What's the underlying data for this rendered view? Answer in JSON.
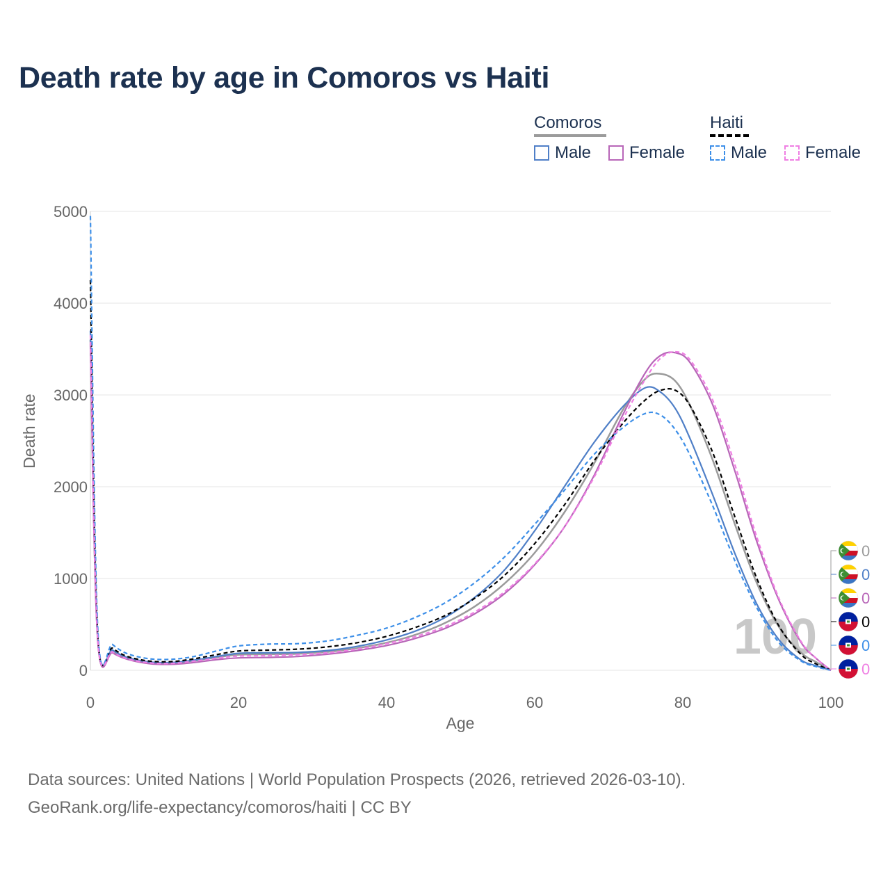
{
  "title": "Death rate by age in Comoros vs Haiti",
  "legend": {
    "groups": [
      {
        "name": "Comoros",
        "line_color": "#9b9b9b",
        "line_style": "solid",
        "items": [
          {
            "label": "Male",
            "color": "#4f7fc7",
            "style": "solid"
          },
          {
            "label": "Female",
            "color": "#b866b8",
            "style": "solid"
          }
        ]
      },
      {
        "name": "Haiti",
        "line_color": "#000000",
        "line_style": "dashed",
        "items": [
          {
            "label": "Male",
            "color": "#3d8fe8",
            "style": "dashed"
          },
          {
            "label": "Female",
            "color": "#ef7fe3",
            "style": "dashed"
          }
        ]
      }
    ]
  },
  "chart_data": {
    "type": "line",
    "title": "Death rate by age in Comoros vs Haiti",
    "xlabel": "Age",
    "ylabel": "Death rate",
    "xlim": [
      0,
      100
    ],
    "ylim": [
      0,
      5000
    ],
    "x_ticks": [
      0,
      20,
      40,
      60,
      80,
      100
    ],
    "y_ticks": [
      0,
      1000,
      2000,
      3000,
      4000,
      5000
    ],
    "grid": true,
    "year_watermark": "100",
    "series": [
      {
        "name": "Comoros Total",
        "color": "#9b9b9b",
        "dash": "",
        "width": 2.5,
        "points": [
          [
            0,
            3600
          ],
          [
            1,
            330
          ],
          [
            3,
            210
          ],
          [
            5,
            130
          ],
          [
            8,
            85
          ],
          [
            11,
            80
          ],
          [
            14,
            105
          ],
          [
            17,
            140
          ],
          [
            20,
            170
          ],
          [
            24,
            175
          ],
          [
            28,
            180
          ],
          [
            32,
            200
          ],
          [
            36,
            240
          ],
          [
            40,
            300
          ],
          [
            44,
            390
          ],
          [
            48,
            520
          ],
          [
            52,
            700
          ],
          [
            56,
            950
          ],
          [
            60,
            1280
          ],
          [
            64,
            1720
          ],
          [
            68,
            2250
          ],
          [
            72,
            2850
          ],
          [
            75,
            3180
          ],
          [
            77,
            3230
          ],
          [
            79,
            3150
          ],
          [
            81,
            2880
          ],
          [
            84,
            2300
          ],
          [
            87,
            1600
          ],
          [
            90,
            950
          ],
          [
            93,
            470
          ],
          [
            96,
            190
          ],
          [
            98,
            90
          ],
          [
            100,
            0
          ]
        ]
      },
      {
        "name": "Comoros Male",
        "color": "#4f7fc7",
        "dash": "",
        "width": 2.2,
        "points": [
          [
            0,
            3700
          ],
          [
            1,
            340
          ],
          [
            3,
            220
          ],
          [
            5,
            140
          ],
          [
            8,
            90
          ],
          [
            11,
            85
          ],
          [
            14,
            110
          ],
          [
            17,
            150
          ],
          [
            20,
            185
          ],
          [
            24,
            190
          ],
          [
            28,
            195
          ],
          [
            32,
            215
          ],
          [
            36,
            260
          ],
          [
            40,
            330
          ],
          [
            44,
            430
          ],
          [
            48,
            580
          ],
          [
            52,
            800
          ],
          [
            56,
            1100
          ],
          [
            60,
            1520
          ],
          [
            64,
            2000
          ],
          [
            68,
            2480
          ],
          [
            72,
            2880
          ],
          [
            75,
            3080
          ],
          [
            77,
            3030
          ],
          [
            79,
            2850
          ],
          [
            81,
            2520
          ],
          [
            84,
            1920
          ],
          [
            87,
            1280
          ],
          [
            90,
            720
          ],
          [
            93,
            330
          ],
          [
            96,
            110
          ],
          [
            98,
            50
          ],
          [
            100,
            0
          ]
        ]
      },
      {
        "name": "Comoros Female",
        "color": "#b866b8",
        "dash": "",
        "width": 2.2,
        "points": [
          [
            0,
            3550
          ],
          [
            1,
            310
          ],
          [
            3,
            190
          ],
          [
            5,
            120
          ],
          [
            8,
            72
          ],
          [
            11,
            65
          ],
          [
            14,
            85
          ],
          [
            17,
            115
          ],
          [
            20,
            135
          ],
          [
            24,
            140
          ],
          [
            28,
            150
          ],
          [
            32,
            175
          ],
          [
            36,
            215
          ],
          [
            40,
            270
          ],
          [
            44,
            350
          ],
          [
            48,
            460
          ],
          [
            52,
            620
          ],
          [
            56,
            840
          ],
          [
            60,
            1150
          ],
          [
            64,
            1560
          ],
          [
            68,
            2120
          ],
          [
            72,
            2800
          ],
          [
            75,
            3250
          ],
          [
            77,
            3430
          ],
          [
            79,
            3460
          ],
          [
            81,
            3350
          ],
          [
            84,
            2900
          ],
          [
            87,
            2180
          ],
          [
            90,
            1400
          ],
          [
            93,
            760
          ],
          [
            96,
            300
          ],
          [
            98,
            130
          ],
          [
            100,
            0
          ]
        ]
      },
      {
        "name": "Haiti Total",
        "color": "#000000",
        "dash": "6,4",
        "width": 2.2,
        "points": [
          [
            0,
            4250
          ],
          [
            1,
            380
          ],
          [
            3,
            240
          ],
          [
            5,
            150
          ],
          [
            8,
            100
          ],
          [
            11,
            95
          ],
          [
            14,
            125
          ],
          [
            17,
            170
          ],
          [
            20,
            210
          ],
          [
            24,
            220
          ],
          [
            28,
            230
          ],
          [
            32,
            255
          ],
          [
            36,
            300
          ],
          [
            40,
            370
          ],
          [
            44,
            470
          ],
          [
            48,
            600
          ],
          [
            52,
            790
          ],
          [
            56,
            1040
          ],
          [
            60,
            1380
          ],
          [
            64,
            1800
          ],
          [
            68,
            2280
          ],
          [
            72,
            2700
          ],
          [
            75,
            2950
          ],
          [
            77,
            3050
          ],
          [
            79,
            3050
          ],
          [
            81,
            2880
          ],
          [
            84,
            2380
          ],
          [
            87,
            1680
          ],
          [
            90,
            1000
          ],
          [
            93,
            480
          ],
          [
            96,
            170
          ],
          [
            98,
            70
          ],
          [
            100,
            0
          ]
        ]
      },
      {
        "name": "Haiti Male",
        "color": "#3d8fe8",
        "dash": "6,4",
        "width": 2.2,
        "points": [
          [
            0,
            4950
          ],
          [
            1,
            440
          ],
          [
            3,
            280
          ],
          [
            5,
            180
          ],
          [
            8,
            125
          ],
          [
            11,
            120
          ],
          [
            14,
            150
          ],
          [
            17,
            210
          ],
          [
            20,
            265
          ],
          [
            24,
            285
          ],
          [
            28,
            290
          ],
          [
            32,
            320
          ],
          [
            36,
            380
          ],
          [
            40,
            460
          ],
          [
            44,
            580
          ],
          [
            48,
            740
          ],
          [
            52,
            960
          ],
          [
            56,
            1240
          ],
          [
            60,
            1590
          ],
          [
            64,
            1960
          ],
          [
            68,
            2350
          ],
          [
            72,
            2650
          ],
          [
            75,
            2800
          ],
          [
            77,
            2780
          ],
          [
            79,
            2620
          ],
          [
            81,
            2340
          ],
          [
            84,
            1800
          ],
          [
            87,
            1200
          ],
          [
            90,
            680
          ],
          [
            93,
            300
          ],
          [
            96,
            100
          ],
          [
            98,
            40
          ],
          [
            100,
            0
          ]
        ]
      },
      {
        "name": "Haiti Female",
        "color": "#ef7fe3",
        "dash": "6,4",
        "width": 2.2,
        "points": [
          [
            0,
            3650
          ],
          [
            1,
            330
          ],
          [
            3,
            200
          ],
          [
            5,
            125
          ],
          [
            8,
            80
          ],
          [
            11,
            75
          ],
          [
            14,
            100
          ],
          [
            17,
            130
          ],
          [
            20,
            155
          ],
          [
            24,
            160
          ],
          [
            28,
            170
          ],
          [
            32,
            190
          ],
          [
            36,
            230
          ],
          [
            40,
            290
          ],
          [
            44,
            370
          ],
          [
            48,
            480
          ],
          [
            52,
            640
          ],
          [
            56,
            860
          ],
          [
            60,
            1160
          ],
          [
            64,
            1560
          ],
          [
            68,
            2100
          ],
          [
            72,
            2750
          ],
          [
            75,
            3180
          ],
          [
            77,
            3400
          ],
          [
            79,
            3470
          ],
          [
            81,
            3380
          ],
          [
            84,
            2950
          ],
          [
            87,
            2250
          ],
          [
            90,
            1450
          ],
          [
            93,
            780
          ],
          [
            96,
            310
          ],
          [
            98,
            130
          ],
          [
            100,
            0
          ]
        ]
      }
    ],
    "end_labels": [
      {
        "country": "Comoros",
        "value": "0",
        "color": "#9b9b9b"
      },
      {
        "country": "Comoros",
        "value": "0",
        "color": "#4f7fc7"
      },
      {
        "country": "Comoros",
        "value": "0",
        "color": "#b866b8"
      },
      {
        "country": "Haiti",
        "value": "0",
        "color": "#000000"
      },
      {
        "country": "Haiti",
        "value": "0",
        "color": "#3d8fe8"
      },
      {
        "country": "Haiti",
        "value": "0",
        "color": "#ef7fe3"
      }
    ]
  },
  "footer": {
    "line1": "Data sources: United Nations | World Population Prospects (2026, retrieved 2026-03-10).",
    "line2": "GeoRank.org/life-expectancy/comoros/haiti | CC BY"
  }
}
